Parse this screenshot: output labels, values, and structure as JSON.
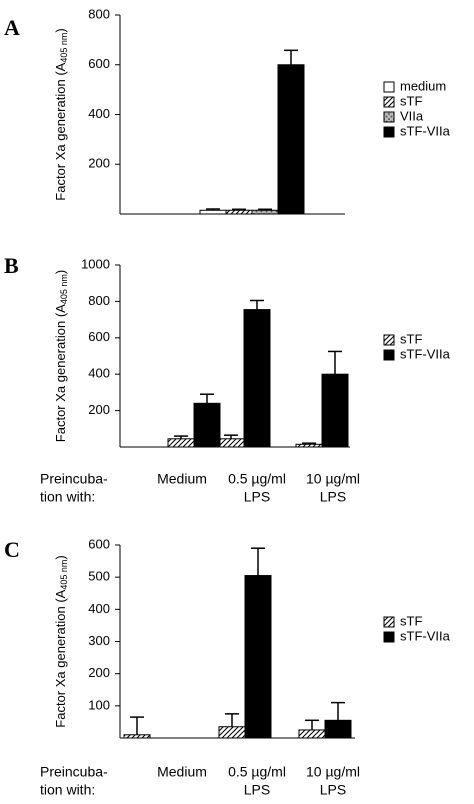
{
  "chart_data": [
    {
      "type": "bar",
      "label": "A",
      "ylabel": {
        "text": "Factor Xa generation (A",
        "sub": "405 nm",
        "end": ")"
      },
      "categories": [
        null
      ],
      "series": [
        {
          "name": "medium",
          "color": "#ffffff",
          "pattern": "solid",
          "values": [
            15
          ],
          "errors": [
            5
          ]
        },
        {
          "name": "sTF",
          "color": "#000000",
          "pattern": "hatch",
          "values": [
            15
          ],
          "errors": [
            4
          ]
        },
        {
          "name": "VIIa",
          "color": "#555555",
          "pattern": "dots",
          "values": [
            15
          ],
          "errors": [
            4
          ]
        },
        {
          "name": "sTF-VIIa",
          "color": "#000000",
          "pattern": "solid",
          "values": [
            600
          ],
          "errors": [
            58
          ]
        }
      ],
      "ylim": [
        0,
        800
      ],
      "yticks": [
        200,
        400,
        600,
        800
      ]
    },
    {
      "type": "bar",
      "label": "B",
      "ylabel": {
        "text": "Factor Xa generation (A",
        "sub": "405 nm",
        "end": ")"
      },
      "row_label": [
        "Preincuba-",
        "tion with:"
      ],
      "categories": [
        [
          "Medium"
        ],
        [
          "0.5 µg/ml",
          "LPS"
        ],
        [
          "10 µg/ml",
          "LPS"
        ]
      ],
      "series": [
        {
          "name": "sTF",
          "color": "#000000",
          "pattern": "hatch",
          "values": [
            45,
            45,
            15
          ],
          "errors": [
            15,
            20,
            6
          ]
        },
        {
          "name": "sTF-VIIa",
          "color": "#000000",
          "pattern": "solid",
          "values": [
            240,
            755,
            400
          ],
          "errors": [
            50,
            50,
            125
          ]
        }
      ],
      "ylim": [
        0,
        1000
      ],
      "yticks": [
        200,
        400,
        600,
        800,
        1000
      ]
    },
    {
      "type": "bar",
      "label": "C",
      "ylabel": {
        "text": "Factor Xa generation (A",
        "sub": "405 nm",
        "end": ")"
      },
      "row_label": [
        "Preincuba-",
        "tion with:"
      ],
      "categories": [
        [
          "Medium"
        ],
        [
          "0.5 µg/ml",
          "LPS"
        ],
        [
          "10 µg/ml",
          "LPS"
        ]
      ],
      "series": [
        {
          "name": "sTF",
          "color": "#000000",
          "pattern": "hatch",
          "values": [
            10,
            35,
            25
          ],
          "errors": [
            55,
            40,
            30
          ]
        },
        {
          "name": "sTF-VIIa",
          "color": "#000000",
          "pattern": "solid",
          "values": [
            null,
            505,
            55
          ],
          "errors": [
            null,
            85,
            55
          ]
        }
      ],
      "ylim": [
        0,
        600
      ],
      "yticks": [
        100,
        200,
        300,
        400,
        500,
        600
      ]
    }
  ]
}
